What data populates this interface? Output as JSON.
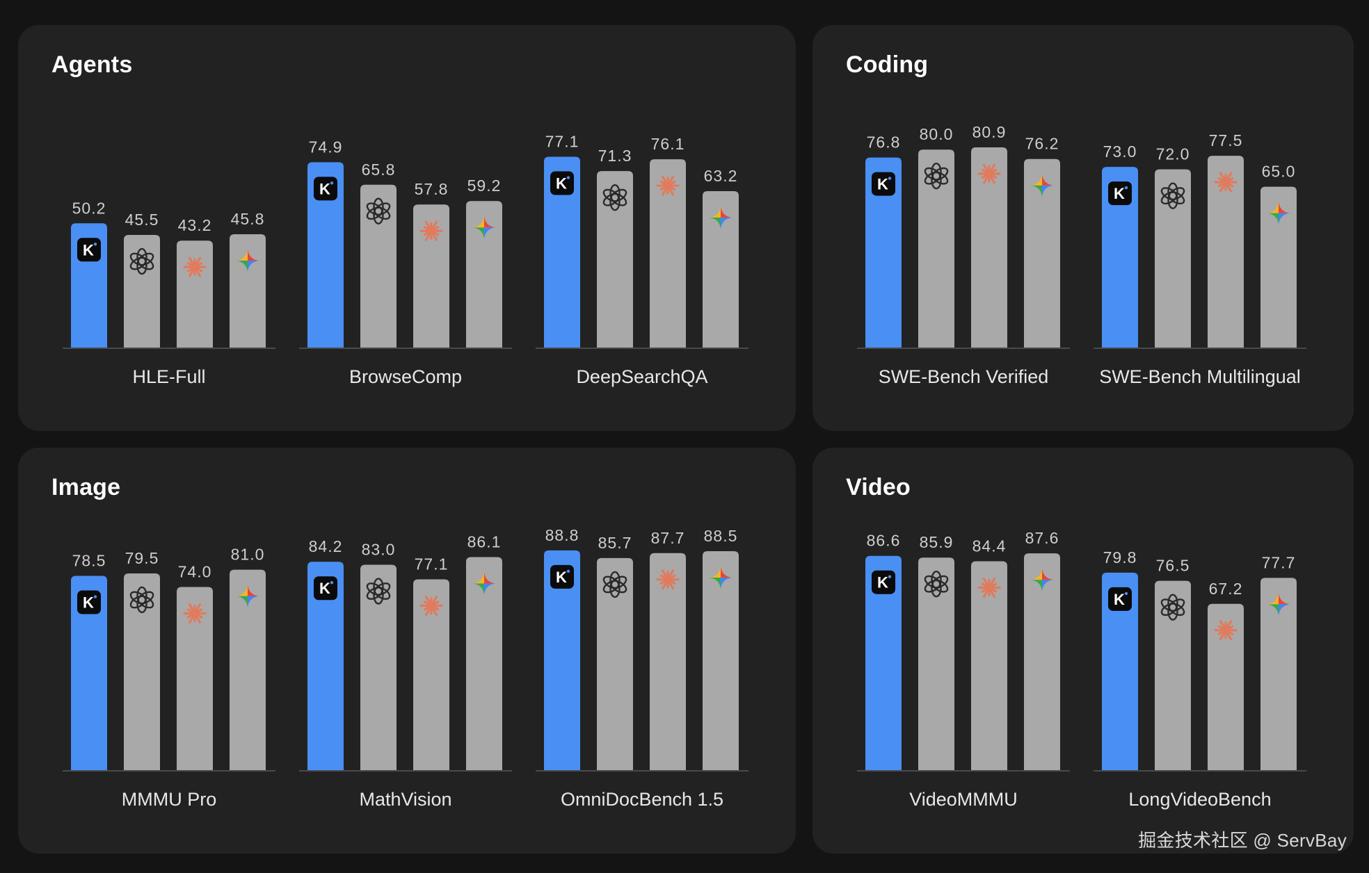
{
  "colors": {
    "page_bg": "#141415",
    "panel_bg": "#222223",
    "kimi_bar": "#4a8ff3",
    "other_bar": "#a9a9a9",
    "axis": "#4a4a4c",
    "value_text": "#cfcfcf",
    "label_text": "#e8e8e8",
    "claude_accent": "#e27a5c"
  },
  "series_icons": [
    "kimi-icon",
    "openai-icon",
    "claude-icon",
    "gemini-icon"
  ],
  "kimi_icon_text": "K",
  "panels": [
    {
      "title": "Agents"
    },
    {
      "title": "Coding"
    },
    {
      "title": "Image"
    },
    {
      "title": "Video"
    }
  ],
  "chart_data": [
    {
      "type": "bar",
      "title": "Agents",
      "ylim": [
        0,
        100
      ],
      "categories": [
        "HLE-Full",
        "BrowseComp",
        "DeepSearchQA"
      ],
      "groups": [
        {
          "category": "HLE-Full",
          "values": [
            50.2,
            45.5,
            43.2,
            45.8
          ],
          "labels": [
            "50.2",
            "45.5",
            "43.2",
            "45.8"
          ]
        },
        {
          "category": "BrowseComp",
          "values": [
            74.9,
            65.8,
            57.8,
            59.2
          ],
          "labels": [
            "74.9",
            "65.8",
            "57.8",
            "59.2"
          ]
        },
        {
          "category": "DeepSearchQA",
          "values": [
            77.1,
            71.3,
            76.1,
            63.2
          ],
          "labels": [
            "77.1",
            "71.3",
            "76.1",
            "63.2"
          ]
        }
      ]
    },
    {
      "type": "bar",
      "title": "Coding",
      "ylim": [
        0,
        100
      ],
      "categories": [
        "SWE-Bench Verified",
        "SWE-Bench Multilingual"
      ],
      "groups": [
        {
          "category": "SWE-Bench Verified",
          "values": [
            76.8,
            80.0,
            80.9,
            76.2
          ],
          "labels": [
            "76.8",
            "80.0",
            "80.9",
            "76.2"
          ]
        },
        {
          "category": "SWE-Bench Multilingual",
          "values": [
            73.0,
            72.0,
            77.5,
            65.0
          ],
          "labels": [
            "73.0",
            "72.0",
            "77.5",
            "65.0"
          ]
        }
      ]
    },
    {
      "type": "bar",
      "title": "Image",
      "ylim": [
        0,
        100
      ],
      "categories": [
        "MMMU Pro",
        "MathVision",
        "OmniDocBench 1.5"
      ],
      "groups": [
        {
          "category": "MMMU Pro",
          "values": [
            78.5,
            79.5,
            74.0,
            81.0
          ],
          "labels": [
            "78.5",
            "79.5",
            "74.0",
            "81.0"
          ]
        },
        {
          "category": "MathVision",
          "values": [
            84.2,
            83.0,
            77.1,
            86.1
          ],
          "labels": [
            "84.2",
            "83.0",
            "77.1",
            "86.1"
          ]
        },
        {
          "category": "OmniDocBench 1.5",
          "values": [
            88.8,
            85.7,
            87.7,
            88.5
          ],
          "labels": [
            "88.8",
            "85.7",
            "87.7",
            "88.5"
          ]
        }
      ]
    },
    {
      "type": "bar",
      "title": "Video",
      "ylim": [
        0,
        100
      ],
      "categories": [
        "VideoMMMU",
        "LongVideoBench"
      ],
      "groups": [
        {
          "category": "VideoMMMU",
          "values": [
            86.6,
            85.9,
            84.4,
            87.6
          ],
          "labels": [
            "86.6",
            "85.9",
            "84.4",
            "87.6"
          ]
        },
        {
          "category": "LongVideoBench",
          "values": [
            79.8,
            76.5,
            67.2,
            77.7
          ],
          "labels": [
            "79.8",
            "76.5",
            "67.2",
            "77.7"
          ]
        }
      ]
    }
  ],
  "watermark": "掘金技术社区 @ ServBay"
}
